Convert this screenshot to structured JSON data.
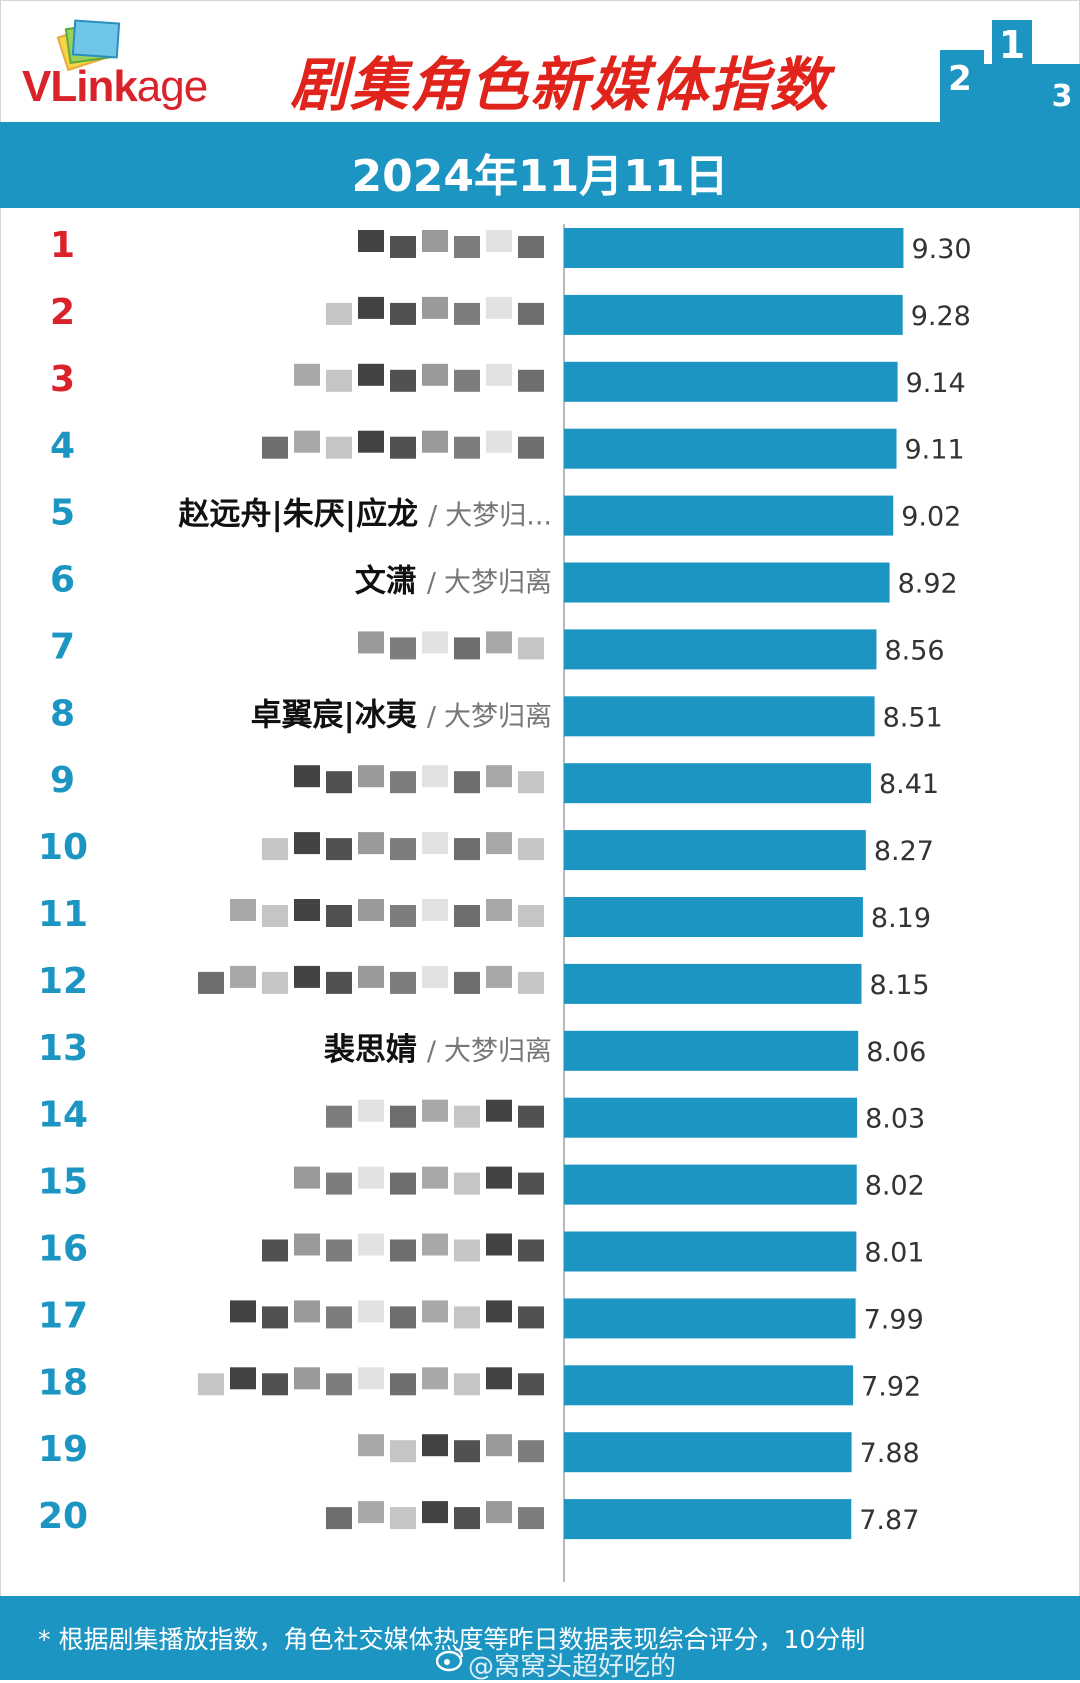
{
  "header": {
    "logo_text_a": "VLink",
    "logo_text_b": "age",
    "title": "剧集角色新媒体指数",
    "date": "2024年11月11日",
    "podium_icon": "podium-icon"
  },
  "chart_data": {
    "type": "bar",
    "orientation": "horizontal",
    "title": "剧集角色新媒体指数",
    "date": "2024年11月11日",
    "scale_max": 10,
    "categories": [
      "1",
      "2",
      "3",
      "4",
      "5",
      "6",
      "7",
      "8",
      "9",
      "10",
      "11",
      "12",
      "13",
      "14",
      "15",
      "16",
      "17",
      "18",
      "19",
      "20"
    ],
    "values": [
      9.3,
      9.28,
      9.14,
      9.11,
      9.02,
      8.92,
      8.56,
      8.51,
      8.41,
      8.27,
      8.19,
      8.15,
      8.06,
      8.03,
      8.02,
      8.01,
      7.99,
      7.92,
      7.88,
      7.87
    ],
    "value_labels": [
      "9.30",
      "9.28",
      "9.14",
      "9.11",
      "9.02",
      "8.92",
      "8.56",
      "8.51",
      "8.41",
      "8.27",
      "8.19",
      "8.15",
      "8.06",
      "8.03",
      "8.02",
      "8.01",
      "7.99",
      "7.92",
      "7.88",
      "7.87"
    ],
    "names": [
      "",
      "",
      "",
      "",
      "赵远舟|朱厌|应龙",
      "文潇",
      "",
      "卓翼宸|冰夷",
      "",
      "",
      "",
      "",
      "裴思婧",
      "",
      "",
      "",
      "",
      "",
      "",
      ""
    ],
    "dramas": [
      "",
      "",
      "",
      "",
      "大梦归...",
      "大梦归离",
      "",
      "大梦归离",
      "",
      "",
      "",
      "",
      "大梦归离",
      "",
      "",
      "",
      "",
      "",
      "",
      ""
    ],
    "separator": "/",
    "name_redacted": [
      true,
      true,
      true,
      true,
      false,
      false,
      true,
      false,
      true,
      true,
      true,
      true,
      false,
      true,
      true,
      true,
      true,
      true,
      true,
      true
    ],
    "top_rank_color": "#d9222a",
    "rank_color": "#1c95c2",
    "bar_color": "#1c95c2"
  },
  "footer": {
    "note": "* 根据剧集播放指数，角色社交媒体热度等昨日数据表现综合评分，10分制",
    "watermark": "@窝窝头超好吃的",
    "weibo_icon": "weibo-icon"
  },
  "colors": {
    "accent": "#1c95c2",
    "title_red": "#e0241b"
  }
}
